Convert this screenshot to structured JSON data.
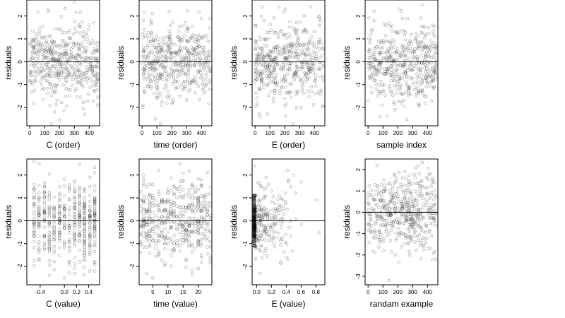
{
  "chart_data": [
    {
      "type": "scatter",
      "xlabel": "C (order)",
      "ylabel": "residuals",
      "xlim": [
        -20,
        470
      ],
      "ylim": [
        -2.8,
        2.7
      ],
      "xticks": [
        0,
        100,
        200,
        300,
        400
      ],
      "xtick_labels": [
        "0",
        "100",
        "200",
        "300",
        "400"
      ],
      "yticks": [
        -2,
        -1,
        0,
        1,
        2
      ],
      "ytick_labels": [
        "-2",
        "-1",
        "0",
        "1",
        "2"
      ],
      "reference_line_y": 0,
      "n_points": 460,
      "point_style": "open-circle",
      "points_sample": [
        [
          10,
          0.95
        ],
        [
          20,
          1.35
        ],
        [
          35,
          -0.85
        ],
        [
          60,
          0.4
        ],
        [
          80,
          -1.0
        ],
        [
          100,
          0.2
        ],
        [
          125,
          2.2
        ],
        [
          150,
          0.6
        ],
        [
          180,
          -0.3
        ],
        [
          200,
          -2.55
        ],
        [
          230,
          0.9
        ],
        [
          270,
          -0.45
        ],
        [
          300,
          2.6
        ],
        [
          340,
          -0.7
        ],
        [
          370,
          -2.3
        ],
        [
          400,
          1.6
        ],
        [
          440,
          -0.2
        ],
        [
          455,
          0.5
        ]
      ]
    },
    {
      "type": "scatter",
      "xlabel": "time (order)",
      "ylabel": "residuals",
      "xlim": [
        -20,
        470
      ],
      "ylim": [
        -2.8,
        2.7
      ],
      "xticks": [
        0,
        100,
        200,
        300,
        400
      ],
      "xtick_labels": [
        "0",
        "100",
        "200",
        "300",
        "400"
      ],
      "yticks": [
        -2,
        -1,
        0,
        1,
        2
      ],
      "ytick_labels": [
        "-2",
        "-1",
        "0",
        "1",
        "2"
      ],
      "reference_line_y": 0,
      "n_points": 460,
      "point_style": "open-circle",
      "points_sample": [
        [
          5,
          -1.9
        ],
        [
          15,
          1.4
        ],
        [
          40,
          -1.1
        ],
        [
          70,
          2.1
        ],
        [
          90,
          -2.5
        ],
        [
          110,
          0.6
        ],
        [
          160,
          -1.0
        ],
        [
          190,
          1.2
        ],
        [
          220,
          -0.4
        ],
        [
          250,
          0.9
        ],
        [
          290,
          1.7
        ],
        [
          310,
          -0.8
        ],
        [
          350,
          0.3
        ],
        [
          400,
          1.9
        ],
        [
          430,
          -0.6
        ],
        [
          450,
          0.2
        ]
      ]
    },
    {
      "type": "scatter",
      "xlabel": "E (order)",
      "ylabel": "residuals",
      "xlim": [
        -20,
        470
      ],
      "ylim": [
        -2.8,
        2.7
      ],
      "xticks": [
        0,
        100,
        200,
        300,
        400
      ],
      "xtick_labels": [
        "0",
        "100",
        "200",
        "300",
        "400"
      ],
      "yticks": [
        -2,
        -1,
        0,
        1,
        2
      ],
      "ytick_labels": [
        "-2",
        "-1",
        "0",
        "1",
        "2"
      ],
      "reference_line_y": 0,
      "n_points": 460,
      "point_style": "open-circle",
      "points_sample": [
        [
          10,
          0.7
        ],
        [
          30,
          -2.4
        ],
        [
          60,
          1.8
        ],
        [
          95,
          -0.9
        ],
        [
          120,
          0.4
        ],
        [
          160,
          2.4
        ],
        [
          200,
          -1.6
        ],
        [
          240,
          0.8
        ],
        [
          280,
          -2.0
        ],
        [
          320,
          1.3
        ],
        [
          360,
          -0.5
        ],
        [
          400,
          -1.4
        ],
        [
          430,
          2.0
        ],
        [
          455,
          0.6
        ]
      ]
    },
    {
      "type": "scatter",
      "xlabel": "sample index",
      "ylabel": "residuals",
      "xlim": [
        -20,
        470
      ],
      "ylim": [
        -2.8,
        2.7
      ],
      "xticks": [
        0,
        100,
        200,
        300,
        400
      ],
      "xtick_labels": [
        "0",
        "100",
        "200",
        "300",
        "400"
      ],
      "yticks": [
        -2,
        -1,
        0,
        1,
        2
      ],
      "ytick_labels": [
        "-2",
        "-1",
        "0",
        "1",
        "2"
      ],
      "reference_line_y": 0,
      "n_points": 460,
      "point_style": "open-circle",
      "points_sample": [
        [
          5,
          1.0
        ],
        [
          40,
          2.2
        ],
        [
          80,
          -2.4
        ],
        [
          95,
          -1.9
        ],
        [
          120,
          1.6
        ],
        [
          150,
          -0.6
        ],
        [
          180,
          0.9
        ],
        [
          210,
          2.3
        ],
        [
          260,
          -1.0
        ],
        [
          300,
          0.4
        ],
        [
          340,
          -1.3
        ],
        [
          390,
          1.2
        ],
        [
          420,
          -0.4
        ],
        [
          450,
          0.8
        ]
      ]
    },
    {
      "type": "scatter",
      "xlabel": "C (value)",
      "ylabel": "residuals",
      "xlim": [
        -0.62,
        0.58
      ],
      "ylim": [
        -2.8,
        2.7
      ],
      "xticks": [
        -0.4,
        0.0,
        0.2,
        0.4
      ],
      "xtick_labels": [
        "-0.4",
        "0.0",
        "0.2",
        "0.4"
      ],
      "yticks": [
        -2,
        -1,
        0,
        1,
        2
      ],
      "ytick_labels": [
        "-2",
        "-1",
        "0",
        "1",
        "2"
      ],
      "reference_line_y": 0,
      "n_points": 460,
      "point_style": "open-circle",
      "x_levels": [
        -0.5,
        -0.42,
        -0.33,
        -0.25,
        -0.17,
        -0.08,
        0.0,
        0.08,
        0.17,
        0.25,
        0.33,
        0.42,
        0.5
      ],
      "points_sample": [
        [
          -0.5,
          1.0
        ],
        [
          -0.5,
          -0.9
        ],
        [
          -0.42,
          2.5
        ],
        [
          -0.33,
          0.4
        ],
        [
          -0.17,
          -1.4
        ],
        [
          0.0,
          -2.5
        ],
        [
          0.08,
          0.9
        ],
        [
          0.25,
          2.45
        ],
        [
          0.42,
          1.9
        ],
        [
          0.5,
          -1.8
        ],
        [
          0.5,
          -2.2
        ]
      ]
    },
    {
      "type": "scatter",
      "xlabel": "time (value)",
      "ylabel": "residuals",
      "xlim": [
        0.5,
        24.5
      ],
      "ylim": [
        -2.8,
        2.7
      ],
      "xticks": [
        5,
        10,
        15,
        20
      ],
      "xtick_labels": [
        "5",
        "10",
        "15",
        "20"
      ],
      "yticks": [
        -2,
        -1,
        0,
        1,
        2
      ],
      "ytick_labels": [
        "-2",
        "-1",
        "0",
        "1",
        "2"
      ],
      "reference_line_y": 0,
      "n_points": 460,
      "point_style": "open-circle",
      "x_levels": [
        1,
        2,
        3,
        4,
        5,
        6,
        7,
        8,
        9,
        10,
        11,
        12,
        13,
        14,
        15,
        16,
        17,
        18,
        19,
        20,
        21,
        22,
        23,
        24
      ],
      "points_sample": [
        [
          1,
          -1.0
        ],
        [
          2,
          1.8
        ],
        [
          3,
          -2.3
        ],
        [
          5,
          -2.5
        ],
        [
          7,
          0.7
        ],
        [
          12,
          1.5
        ],
        [
          12,
          -1.0
        ],
        [
          14,
          2.5
        ],
        [
          18,
          1.1
        ],
        [
          21,
          1.8
        ],
        [
          24,
          -0.5
        ]
      ]
    },
    {
      "type": "scatter",
      "xlabel": "E (value)",
      "ylabel": "residuals",
      "xlim": [
        -0.06,
        0.92
      ],
      "ylim": [
        -2.8,
        2.7
      ],
      "xticks": [
        0.0,
        0.2,
        0.4,
        0.6,
        0.8
      ],
      "xtick_labels": [
        "0.0",
        "0.2",
        "0.4",
        "0.6",
        "0.8"
      ],
      "yticks": [
        -2,
        -1,
        0,
        1,
        2
      ],
      "ytick_labels": [
        "-2",
        "-1",
        "0",
        "1",
        "2"
      ],
      "reference_line_y": 0,
      "n_points": 460,
      "point_style": "open-circle",
      "points_sample": [
        [
          -0.03,
          2.4
        ],
        [
          -0.03,
          -1.0
        ],
        [
          -0.03,
          1.0
        ],
        [
          0.05,
          -2.3
        ],
        [
          0.2,
          1.3
        ],
        [
          0.4,
          -1.6
        ],
        [
          0.5,
          2.0
        ],
        [
          0.6,
          1.7
        ],
        [
          0.81,
          0.9
        ],
        [
          0.84,
          -0.5
        ]
      ]
    },
    {
      "type": "scatter",
      "xlabel": "randam example",
      "ylabel": "residuals",
      "xlim": [
        -20,
        470
      ],
      "ylim": [
        -3.4,
        2.5
      ],
      "xticks": [
        0,
        100,
        200,
        300,
        400
      ],
      "xtick_labels": [
        "0",
        "100",
        "200",
        "300",
        "400"
      ],
      "yticks": [
        -3,
        -2,
        -1,
        0,
        1,
        2
      ],
      "ytick_labels": [
        "-3",
        "-2",
        "-1",
        "0",
        "1",
        "2"
      ],
      "reference_line_y": 0,
      "n_points": 460,
      "point_style": "open-circle",
      "points_sample": [
        [
          0,
          0.9
        ],
        [
          30,
          -1.8
        ],
        [
          60,
          2.2
        ],
        [
          100,
          -0.6
        ],
        [
          140,
          -3.2
        ],
        [
          180,
          1.4
        ],
        [
          230,
          0.2
        ],
        [
          280,
          -2.0
        ],
        [
          320,
          2.1
        ],
        [
          370,
          -1.2
        ],
        [
          420,
          1.8
        ],
        [
          455,
          -2.2
        ]
      ]
    }
  ]
}
